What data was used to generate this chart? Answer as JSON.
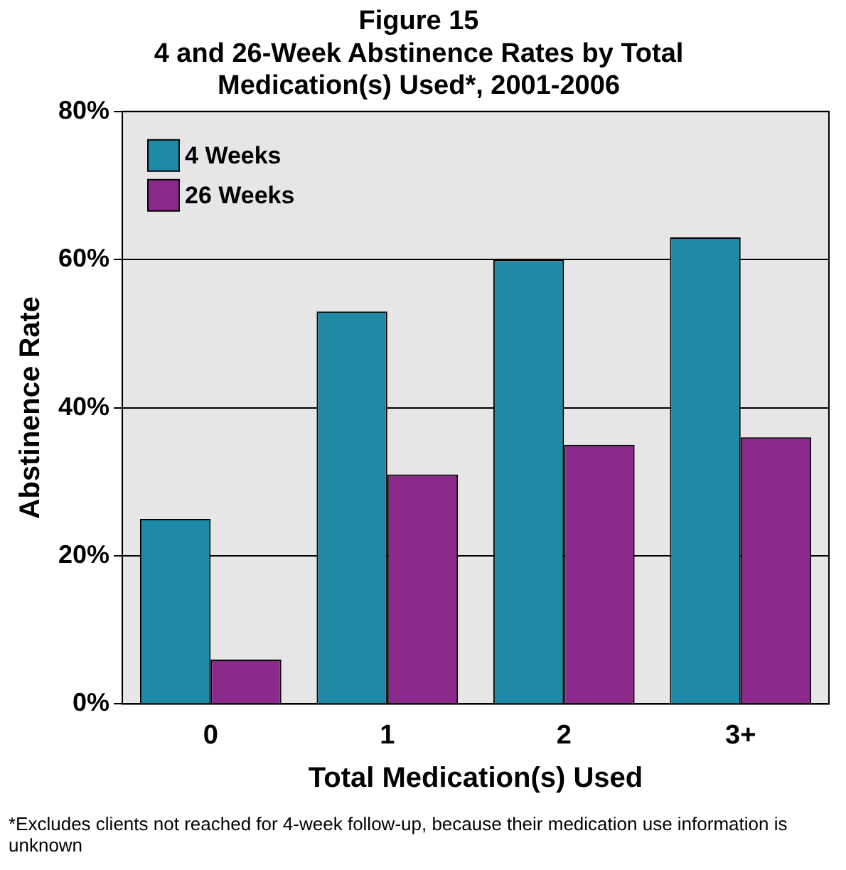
{
  "chart_data": {
    "type": "bar",
    "title": [
      "Figure 15",
      "4 and 26-Week Abstinence Rates by Total",
      "Medication(s) Used*, 2001-2006"
    ],
    "xlabel": "Total Medication(s) Used",
    "ylabel": "Abstinence Rate",
    "categories": [
      "0",
      "1",
      "2",
      "3+"
    ],
    "series": [
      {
        "name": "4 Weeks",
        "color": "#1f8aa6",
        "values": [
          25,
          53,
          60,
          63
        ]
      },
      {
        "name": "26 Weeks",
        "color": "#8b2a8a",
        "values": [
          6,
          31,
          35,
          36
        ]
      }
    ],
    "ylim": [
      0,
      80
    ],
    "yticks": [
      {
        "value": 0,
        "label": "0%"
      },
      {
        "value": 20,
        "label": "20%"
      },
      {
        "value": 40,
        "label": "40%"
      },
      {
        "value": 60,
        "label": "60%"
      },
      {
        "value": 80,
        "label": "80%"
      }
    ],
    "grid": "y",
    "legend": "top left",
    "annotations": [
      "*Excludes clients not reached for 4-week follow-up, because their medication use information is unknown"
    ]
  }
}
